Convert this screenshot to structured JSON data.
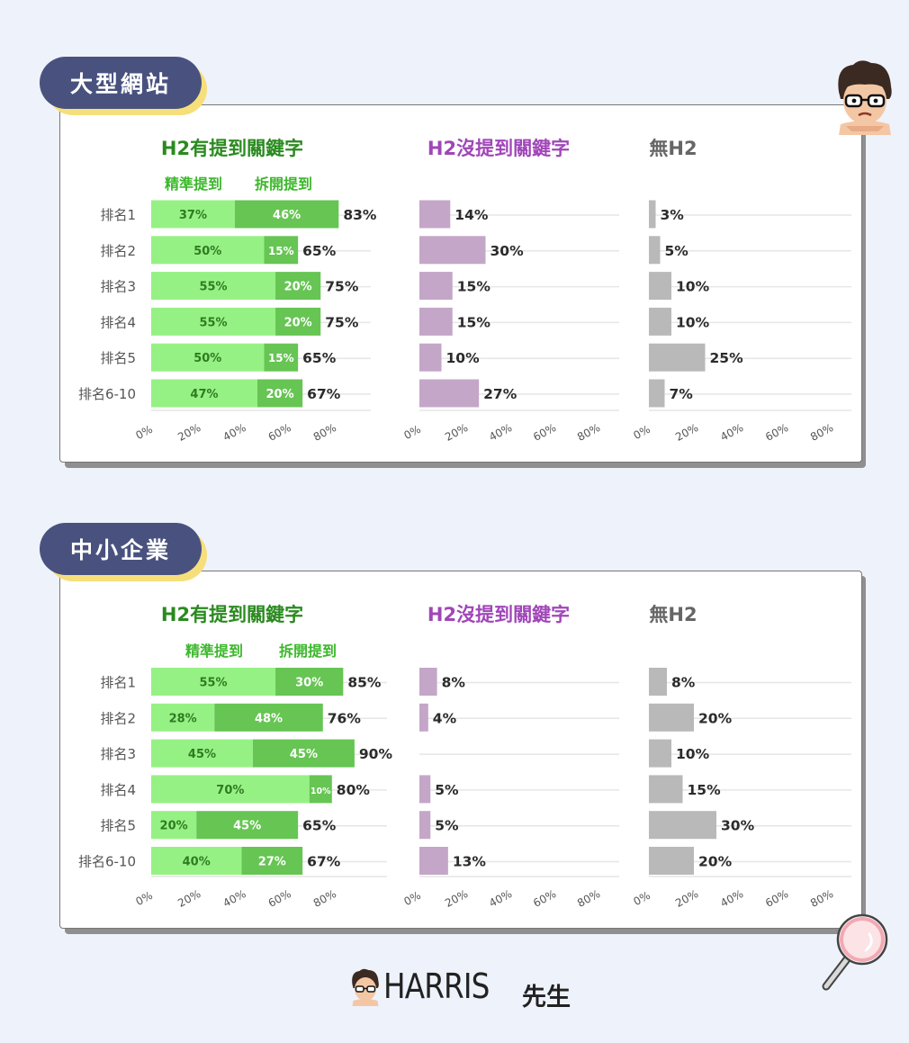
{
  "logo": {
    "brand_text": "HARRIS",
    "brand_suffix": "先生"
  },
  "icons": {
    "top_avatar": "avatar-icon",
    "magnifier": "magnifier-icon",
    "footer_avatar": "avatar-icon"
  },
  "colors": {
    "exact": "#96f184",
    "split": "#66c553",
    "no_h2_keyword": "#c4a6c8",
    "no_h2": "#b9b9b9",
    "title_green": "#2a8a1f",
    "title_purple": "#a046b8",
    "title_gray": "#666666",
    "legend_green": "#3bb82a",
    "tag_bg": "#49527f",
    "tag_shadow": "#f6df7a"
  },
  "sections": [
    {
      "tag": "大型網站",
      "chart_data": {
        "type": "bar",
        "orientation": "horizontal",
        "categories": [
          "排名1",
          "排名2",
          "排名3",
          "排名4",
          "排名5",
          "排名6-10"
        ],
        "xlim": [
          0,
          100
        ],
        "tick_labels": [
          "0%",
          "20%",
          "40%",
          "60%",
          "80%"
        ],
        "panels": [
          {
            "title": "H2有提到關鍵字",
            "stacked": true,
            "legend": [
              "精準提到",
              "拆開提到"
            ],
            "series": [
              {
                "name": "精準提到",
                "values": [
                  37,
                  50,
                  55,
                  55,
                  50,
                  47
                ],
                "labels": [
                  "37%",
                  "50%",
                  "55%",
                  "55%",
                  "50%",
                  "47%"
                ]
              },
              {
                "name": "拆開提到",
                "values": [
                  46,
                  15,
                  20,
                  20,
                  15,
                  20
                ],
                "labels": [
                  "46%",
                  "15%",
                  "20%",
                  "20%",
                  "15%",
                  "20%"
                ]
              }
            ],
            "totals": [
              "83%",
              "65%",
              "75%",
              "75%",
              "65%",
              "67%"
            ]
          },
          {
            "title": "H2沒提到關鍵字",
            "values": [
              14,
              30,
              15,
              15,
              10,
              27
            ],
            "labels": [
              "14%",
              "30%",
              "15%",
              "15%",
              "10%",
              "27%"
            ]
          },
          {
            "title": "無H2",
            "values": [
              3,
              5,
              10,
              10,
              25,
              7
            ],
            "labels": [
              "3%",
              "5%",
              "10%",
              "10%",
              "25%",
              "7%"
            ]
          }
        ]
      }
    },
    {
      "tag": "中小企業",
      "chart_data": {
        "type": "bar",
        "orientation": "horizontal",
        "categories": [
          "排名1",
          "排名2",
          "排名3",
          "排名4",
          "排名5",
          "排名6-10"
        ],
        "xlim": [
          0,
          100
        ],
        "tick_labels": [
          "0%",
          "20%",
          "40%",
          "60%",
          "80%"
        ],
        "panels": [
          {
            "title": "H2有提到關鍵字",
            "stacked": true,
            "legend": [
              "精準提到",
              "拆開提到"
            ],
            "series": [
              {
                "name": "精準提到",
                "values": [
                  55,
                  28,
                  45,
                  70,
                  20,
                  40
                ],
                "labels": [
                  "55%",
                  "28%",
                  "45%",
                  "70%",
                  "20%",
                  "40%"
                ]
              },
              {
                "name": "拆開提到",
                "values": [
                  30,
                  48,
                  45,
                  10,
                  45,
                  27
                ],
                "labels": [
                  "30%",
                  "48%",
                  "45%",
                  "10%",
                  "45%",
                  "27%"
                ]
              }
            ],
            "totals": [
              "85%",
              "76%",
              "90%",
              "80%",
              "65%",
              "67%"
            ]
          },
          {
            "title": "H2沒提到關鍵字",
            "values": [
              8,
              4,
              0,
              5,
              5,
              13
            ],
            "labels": [
              "8%",
              "4%",
              "",
              "5%",
              "5%",
              "13%"
            ]
          },
          {
            "title": "無H2",
            "values": [
              8,
              20,
              10,
              15,
              30,
              20
            ],
            "labels": [
              "8%",
              "20%",
              "10%",
              "15%",
              "30%",
              "20%"
            ]
          }
        ]
      }
    }
  ]
}
